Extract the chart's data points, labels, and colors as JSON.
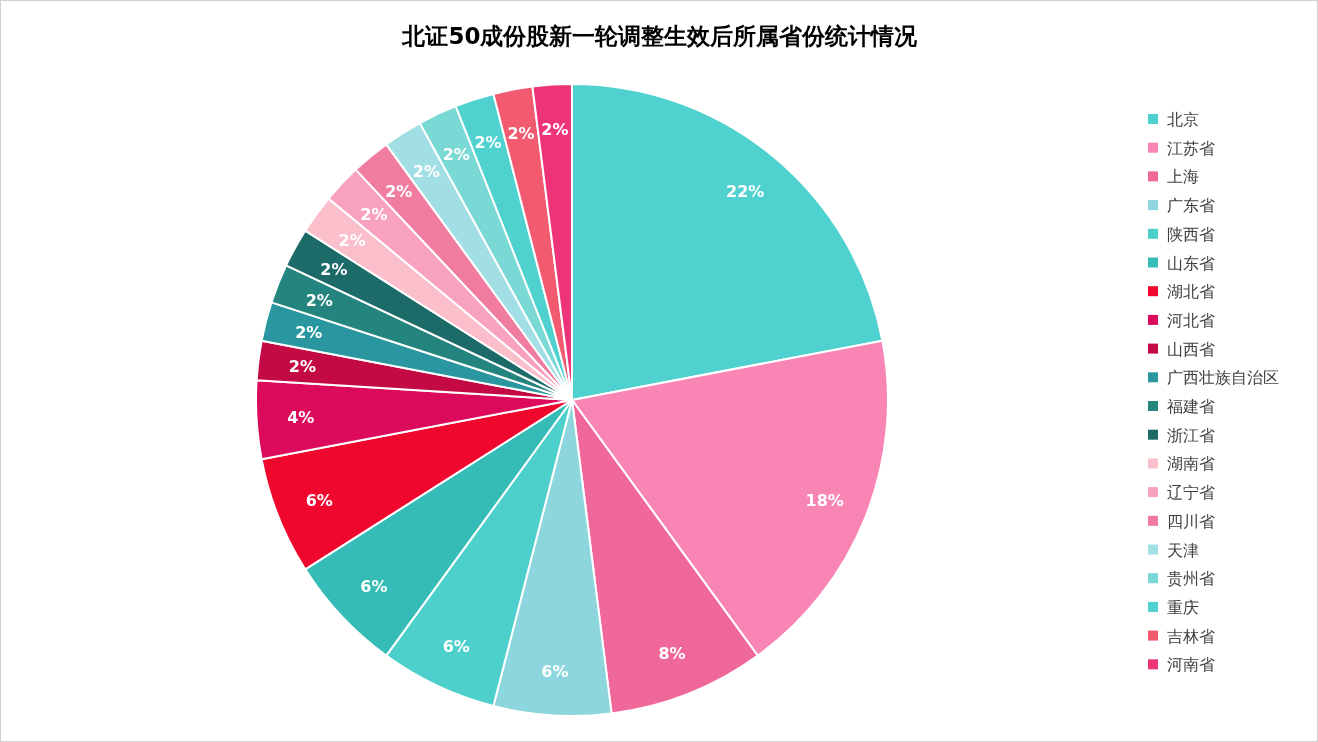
{
  "chart_data": {
    "type": "pie",
    "title": "北证50成份股新一轮调整生效后所属省份统计情况",
    "categories": [
      "北京",
      "江苏省",
      "上海",
      "广东省",
      "陕西省",
      "山东省",
      "湖北省",
      "河北省",
      "山西省",
      "广西壮族自治区",
      "福建省",
      "浙江省",
      "湖南省",
      "辽宁省",
      "四川省",
      "天津",
      "贵州省",
      "重庆",
      "吉林省",
      "河南省"
    ],
    "values": [
      22,
      18,
      8,
      6,
      6,
      6,
      6,
      4,
      2,
      2,
      2,
      2,
      2,
      2,
      2,
      2,
      2,
      2,
      2,
      2
    ],
    "colors": [
      "#4fd1cf",
      "#f985b5",
      "#f0679a",
      "#8dd6dd",
      "#4dd0cc",
      "#36bcb7",
      "#f0072e",
      "#dc0a5a",
      "#c30a45",
      "#2a97a0",
      "#24857f",
      "#1d6b69",
      "#fbbfcc",
      "#f8a1c0",
      "#f07ca0",
      "#a2dfe5",
      "#7ad8d5",
      "#4fd1cf",
      "#f25a70",
      "#ee3479"
    ],
    "value_labels": [
      "22%",
      "18%",
      "8%",
      "6%",
      "6%",
      "6%",
      "6%",
      "4%",
      "2%",
      "2%",
      "2%",
      "2%",
      "2%",
      "2%",
      "2%",
      "2%",
      "2%",
      "2%",
      "2%",
      "2%"
    ],
    "legend": "right"
  }
}
